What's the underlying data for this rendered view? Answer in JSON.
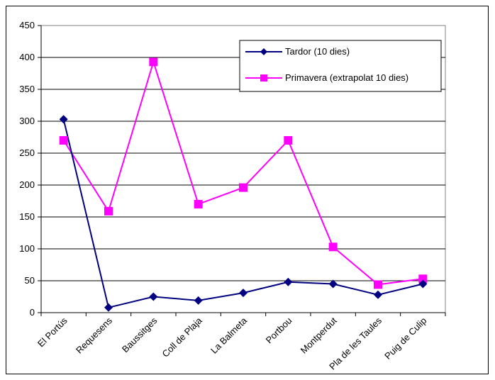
{
  "chart_data": {
    "type": "line",
    "title": "",
    "xlabel": "",
    "ylabel": "",
    "categories": [
      "El Portús",
      "Requesens",
      "Baussitges",
      "Coll de Plaja",
      "La Balmeta",
      "Portbou",
      "Montperdut",
      "Pla de les Taules",
      "Puig de Culip"
    ],
    "ylim": [
      0,
      450
    ],
    "yticks": [
      0,
      50,
      100,
      150,
      200,
      250,
      300,
      350,
      400,
      450
    ],
    "grid": true,
    "legend_position": "top-right",
    "series": [
      {
        "name": "Tardor (10 dies)",
        "color": "#000080",
        "marker": "diamond",
        "values": [
          303,
          8,
          25,
          19,
          31,
          48,
          45,
          28,
          45
        ]
      },
      {
        "name": "Primavera (extrapolat 10 dies)",
        "color": "#ff00ff",
        "marker": "square",
        "values": [
          270,
          159,
          393,
          170,
          196,
          270,
          103,
          44,
          53
        ]
      }
    ]
  }
}
